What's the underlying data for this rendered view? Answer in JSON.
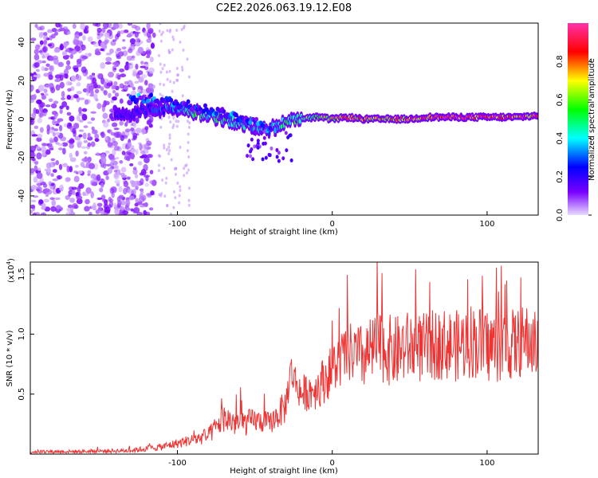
{
  "title": "C2E2.2026.063.19.12.E08",
  "chart_data": [
    {
      "type": "heatmap",
      "name": "spectrogram",
      "xlabel": "Height of straight line (km)",
      "ylabel": "Frequency (Hz)",
      "xlim": [
        -195,
        133
      ],
      "ylim": [
        -50,
        50
      ],
      "xticks": [
        -100,
        0,
        100
      ],
      "xtick_labels": [
        "-100",
        "0",
        "100"
      ],
      "yticks": [
        -40,
        -20,
        0,
        20,
        40
      ],
      "ytick_labels": [
        "-40",
        "-20",
        "0",
        "20",
        "40"
      ],
      "colorbar": {
        "label": "Normalized spectral amplitude",
        "range": [
          0,
          1
        ],
        "ticks": [
          0,
          0.2,
          0.4,
          0.6,
          0.8
        ],
        "tick_labels": [
          "0.0",
          "0.2",
          "0.4",
          "0.6",
          "0.8"
        ],
        "colormap": [
          "#e8dcff",
          "#7a00ff",
          "#0000ff",
          "#00ffff",
          "#00ff00",
          "#ffff00",
          "#ff0000",
          "#ff33aa"
        ]
      },
      "ridge": {
        "description_points_height_km": [
          -135,
          -120,
          -110,
          -100,
          -90,
          -80,
          -70,
          -60,
          -50,
          -40,
          -35,
          -30,
          -20,
          -10,
          0,
          10,
          20,
          30,
          40,
          50,
          60,
          70,
          80,
          90,
          100,
          110,
          120,
          133
        ],
        "frequency_hz": [
          2,
          5,
          5,
          5,
          4,
          2,
          0,
          -2,
          -4,
          -5,
          -4,
          -1,
          0,
          1,
          0,
          1,
          0,
          0,
          0,
          0,
          1,
          1,
          1,
          1,
          1,
          1,
          1,
          2
        ],
        "amplitude": [
          0.25,
          0.3,
          0.35,
          0.4,
          0.55,
          0.5,
          0.55,
          0.5,
          0.45,
          0.4,
          0.45,
          0.55,
          0.6,
          0.7,
          0.75,
          0.8,
          0.85,
          0.8,
          0.85,
          0.85,
          0.9,
          0.95,
          0.95,
          0.95,
          0.95,
          0.9,
          0.9,
          0.9
        ]
      },
      "secondary_band": {
        "height_km": [
          -130,
          -120,
          -110,
          -100,
          -90,
          -80,
          -70,
          -60,
          -50,
          -40
        ],
        "frequency_hz": [
          10,
          11,
          10,
          8,
          7,
          5,
          3,
          1,
          -1,
          -6
        ]
      }
    },
    {
      "type": "line",
      "name": "snr",
      "xlabel": "Height of straight line (km)",
      "ylabel": "SNR (10 * v/v)",
      "multiplier_label": "(x10",
      "multiplier_exp": "4",
      "multiplier_close": ")",
      "xlim": [
        -195,
        133
      ],
      "ylim": [
        0,
        16000
      ],
      "xticks": [
        -100,
        0,
        100
      ],
      "xtick_labels": [
        "-100",
        "0",
        "100"
      ],
      "yticks": [
        5000,
        10000,
        15000
      ],
      "ytick_labels": [
        "0.5",
        "1.0",
        "1.5"
      ],
      "color": "#ee3333",
      "envelope": {
        "x": [
          -195,
          -160,
          -130,
          -110,
          -100,
          -90,
          -80,
          -70,
          -60,
          -50,
          -40,
          -30,
          -27,
          -20,
          -10,
          0,
          10,
          20,
          30,
          40,
          50,
          60,
          70,
          80,
          90,
          100,
          110,
          120,
          125,
          133
        ],
        "y_mean": [
          200,
          220,
          300,
          600,
          900,
          1200,
          1500,
          3000,
          2500,
          2800,
          2600,
          4000,
          7000,
          5000,
          5500,
          7000,
          8500,
          8000,
          9000,
          8500,
          9000,
          8800,
          9200,
          9000,
          9500,
          9000,
          9000,
          9200,
          9500,
          9000
        ],
        "y_spread": [
          150,
          150,
          200,
          300,
          400,
          500,
          700,
          1200,
          1200,
          1000,
          900,
          1500,
          1500,
          1500,
          1800,
          2200,
          2500,
          2800,
          3000,
          3000,
          3000,
          3000,
          3000,
          3000,
          3200,
          3200,
          3000,
          3000,
          3000,
          2800
        ]
      }
    }
  ]
}
